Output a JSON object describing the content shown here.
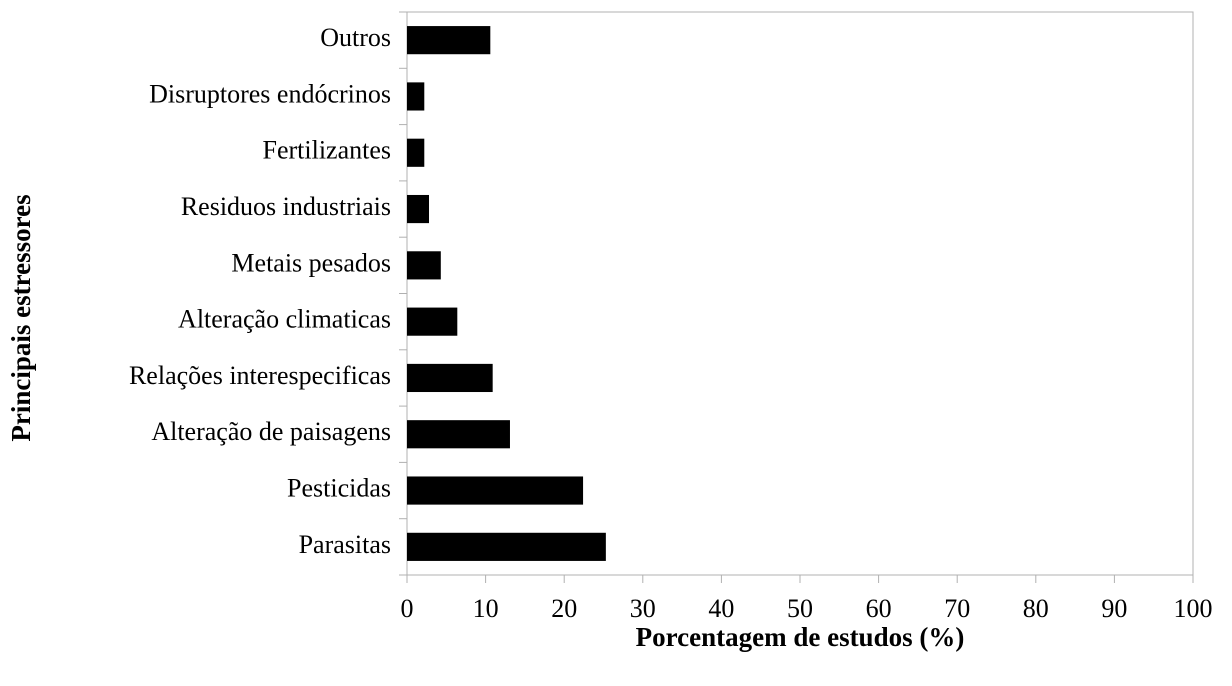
{
  "chart_data": {
    "type": "barh",
    "xlabel": "Porcentagem de estudos (%)",
    "ylabel": "Principais estressores",
    "categories": [
      "Parasitas",
      "Pesticidas",
      "Alteração de paisagens",
      "Relações interespecificas",
      "Alteração climaticas",
      "Metais pesados",
      "Residuos industriais",
      "Fertilizantes",
      "Disruptores endócrinos",
      "Outros"
    ],
    "values": [
      25.3,
      22.4,
      13.1,
      10.9,
      6.4,
      4.3,
      2.8,
      2.2,
      2.2,
      10.6
    ],
    "color": "#000000",
    "xlim": [
      0,
      100
    ],
    "xticks": [
      0,
      10,
      20,
      30,
      40,
      50,
      60,
      70,
      80,
      90,
      100
    ],
    "grid": false
  }
}
